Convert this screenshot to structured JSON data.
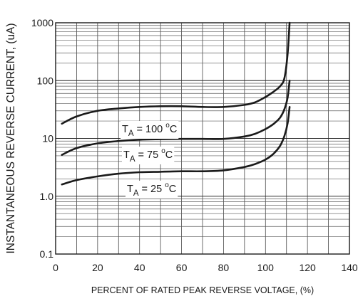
{
  "chart_data": {
    "type": "line",
    "xlabel": "PERCENT OF RATED PEAK REVERSE VOLTAGE, (%)",
    "ylabel": "INSTANTANEOUS REVERSE CURRENT, (uA)",
    "xlim": [
      0,
      140
    ],
    "ylim": [
      0.1,
      1000
    ],
    "yscale": "log",
    "grid": true,
    "x_ticks": [
      0,
      20,
      40,
      60,
      80,
      100,
      120,
      140
    ],
    "x_tick_labels": [
      "0",
      "20",
      "40",
      "60",
      "80",
      "100",
      "120",
      "140"
    ],
    "y_ticks": [
      0.1,
      1,
      10,
      100,
      1000
    ],
    "y_tick_labels": [
      "0.1",
      "1.0",
      "10",
      "100",
      "1000"
    ],
    "series": [
      {
        "name": "TA = 100 °C",
        "label": {
          "main": "T",
          "sub": "A",
          "mid": " = 100 ",
          "deg": "o",
          "unit": "C"
        },
        "x": [
          3,
          10,
          20,
          30,
          40,
          50,
          60,
          70,
          80,
          90,
          95,
          100,
          104,
          107,
          109,
          110.5,
          111.5
        ],
        "y": [
          18,
          24,
          30,
          33,
          35,
          36,
          36,
          35,
          35,
          38,
          42,
          52,
          65,
          80,
          110,
          280,
          1000
        ]
      },
      {
        "name": "TA = 75 °C",
        "label": {
          "main": "T",
          "sub": "A",
          "mid": " = 75 ",
          "deg": "o",
          "unit": "C"
        },
        "x": [
          3,
          10,
          20,
          30,
          40,
          50,
          60,
          70,
          80,
          90,
          95,
          100,
          104,
          107,
          109,
          110.5,
          111.5
        ],
        "y": [
          5.2,
          6.8,
          8.2,
          9.0,
          9.5,
          9.7,
          9.8,
          9.8,
          9.8,
          10.8,
          12,
          14.5,
          18,
          23,
          32,
          50,
          100
        ]
      },
      {
        "name": "TA = 25 °C",
        "label": {
          "main": "T",
          "sub": "A",
          "mid": " = 25 ",
          "deg": "o",
          "unit": "C"
        },
        "x": [
          3,
          10,
          20,
          30,
          40,
          50,
          60,
          70,
          80,
          90,
          95,
          100,
          104,
          107,
          109,
          110.5,
          111.5
        ],
        "y": [
          1.6,
          1.9,
          2.2,
          2.45,
          2.6,
          2.65,
          2.7,
          2.7,
          2.8,
          3.2,
          3.6,
          4.3,
          5.5,
          7.5,
          11,
          18,
          35
        ]
      }
    ]
  }
}
